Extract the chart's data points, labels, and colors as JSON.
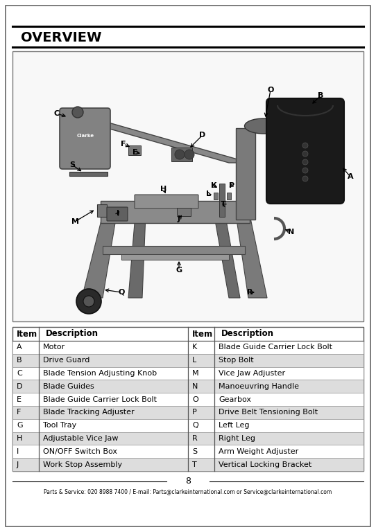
{
  "title": "OVERVIEW",
  "page_number": "8",
  "footer": "Parts & Service: 020 8988 7400 / E-mail: Parts@clarkeinternational.com or Service@clarkeinternational.com",
  "table_left": [
    [
      "A",
      "Motor"
    ],
    [
      "B",
      "Drive Guard"
    ],
    [
      "C",
      "Blade Tension Adjusting Knob"
    ],
    [
      "D",
      "Blade Guides"
    ],
    [
      "E",
      "Blade Guide Carrier Lock Bolt"
    ],
    [
      "F",
      "Blade Tracking Adjuster"
    ],
    [
      "G",
      "Tool Tray"
    ],
    [
      "H",
      "Adjustable Vice Jaw"
    ],
    [
      "I",
      "ON/OFF Switch Box"
    ],
    [
      "J",
      "Work Stop Assembly"
    ]
  ],
  "table_right": [
    [
      "K",
      "Blade Guide Carrier Lock Bolt"
    ],
    [
      "L",
      "Stop Bolt"
    ],
    [
      "M",
      "Vice Jaw Adjuster"
    ],
    [
      "N",
      "Manoeuvring Handle"
    ],
    [
      "O",
      "Gearbox"
    ],
    [
      "P",
      "Drive Belt Tensioning Bolt"
    ],
    [
      "Q",
      "Left Leg"
    ],
    [
      "R",
      "Right Leg"
    ],
    [
      "S",
      "Arm Weight Adjuster"
    ],
    [
      "T",
      "Vertical Locking Bracket"
    ]
  ],
  "bg_color": "#ffffff"
}
